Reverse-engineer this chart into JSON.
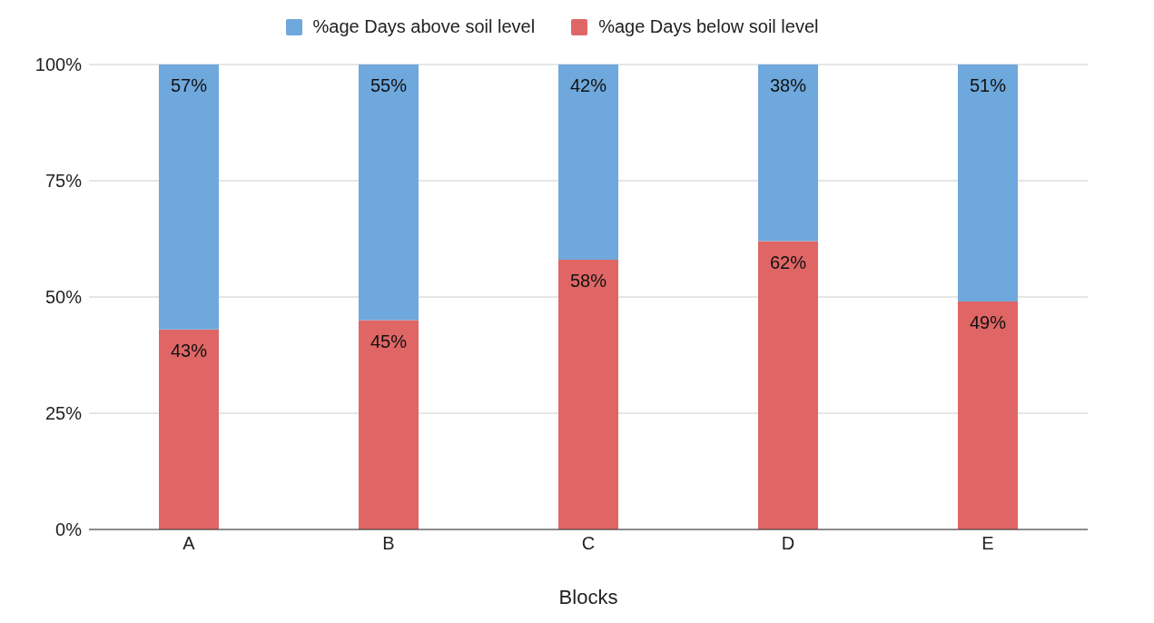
{
  "chart_data": {
    "type": "bar",
    "stacked": true,
    "xlabel": "Blocks",
    "categories": [
      "A",
      "B",
      "C",
      "D",
      "E"
    ],
    "series": [
      {
        "name": "%age Days below soil level",
        "color": "#e06666",
        "values": [
          43,
          45,
          58,
          62,
          49
        ],
        "value_labels": [
          "43%",
          "45%",
          "58%",
          "62%",
          "49%"
        ]
      },
      {
        "name": "%age Days above soil level",
        "color": "#6fa8dc",
        "values": [
          57,
          55,
          42,
          38,
          51
        ],
        "value_labels": [
          "57%",
          "55%",
          "42%",
          "38%",
          "51%"
        ]
      }
    ],
    "ylim": [
      0,
      100
    ],
    "yticks": [
      {
        "value": 0,
        "label": "0%"
      },
      {
        "value": 25,
        "label": "25%"
      },
      {
        "value": 50,
        "label": "50%"
      },
      {
        "value": 75,
        "label": "75%"
      },
      {
        "value": 100,
        "label": "100%"
      }
    ],
    "grid": "y",
    "legend": "top"
  }
}
